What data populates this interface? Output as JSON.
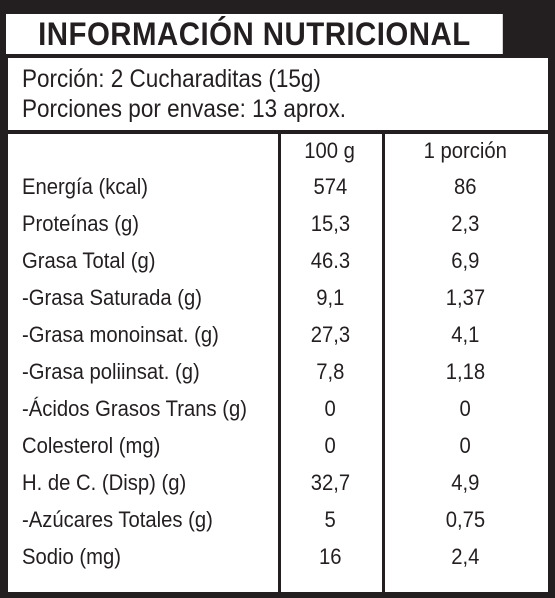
{
  "title": "INFORMACIÓN NUTRICIONAL",
  "portion": {
    "serving": "Porción: 2 Cucharaditas (15g)",
    "servings_per_container": "Porciones por envase: 13 aprox."
  },
  "table": {
    "headers": [
      "",
      "100 g",
      "1 porción"
    ],
    "rows": [
      {
        "name": "Energía (kcal)",
        "per100": "574",
        "perServing": "86"
      },
      {
        "name": "Proteínas (g)",
        "per100": "15,3",
        "perServing": "2,3"
      },
      {
        "name": "Grasa Total (g)",
        "per100": "46.3",
        "perServing": "6,9"
      },
      {
        "name": "-Grasa Saturada (g)",
        "per100": "9,1",
        "perServing": "1,37"
      },
      {
        "name": "-Grasa monoinsat. (g)",
        "per100": "27,3",
        "perServing": "4,1"
      },
      {
        "name": "-Grasa poliinsat. (g)",
        "per100": "7,8",
        "perServing": "1,18"
      },
      {
        "name": "-Ácidos Grasos Trans (g)",
        "per100": "0",
        "perServing": "0"
      },
      {
        "name": "Colesterol (mg)",
        "per100": "0",
        "perServing": "0"
      },
      {
        "name": "H. de C. (Disp) (g)",
        "per100": "32,7",
        "perServing": "4,9"
      },
      {
        "name": "-Azúcares Totales (g)",
        "per100": "5",
        "perServing": "0,75"
      },
      {
        "name": "Sodio (mg)",
        "per100": "16",
        "perServing": "2,4"
      }
    ]
  },
  "colors": {
    "ink": "#231f20",
    "paper": "#ffffff"
  }
}
